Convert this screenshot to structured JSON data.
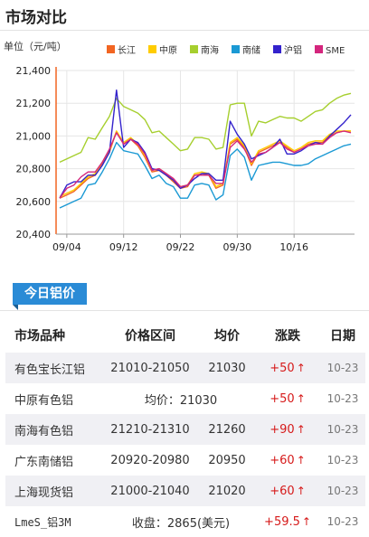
{
  "page": {
    "title": "市场对比"
  },
  "chart_data": {
    "type": "line",
    "ylabel": "单位（元/吨）",
    "ylim": [
      20400,
      21400
    ],
    "yticks": [
      20400,
      20600,
      20800,
      21000,
      21200,
      21400
    ],
    "xticks": [
      "09/04",
      "09/12",
      "09/22",
      "09/30",
      "10/16"
    ],
    "xtick_positions": [
      1,
      9,
      17,
      25,
      33
    ],
    "x_count": 42,
    "grid": true,
    "legend_position": "top-right",
    "series": [
      {
        "name": "长江",
        "color": "#f26522",
        "values": [
          20620,
          20640,
          20660,
          20700,
          20740,
          20760,
          20830,
          20900,
          21030,
          20950,
          20980,
          20940,
          20870,
          20780,
          20790,
          20760,
          20720,
          20680,
          20690,
          20760,
          20770,
          20760,
          20680,
          20700,
          20950,
          20980,
          20930,
          20820,
          20900,
          20920,
          20940,
          20960,
          20930,
          20900,
          20920,
          20950,
          20960,
          20960,
          21000,
          21020,
          21030,
          21030
        ]
      },
      {
        "name": "中原",
        "color": "#ffcc00",
        "values": [
          20630,
          20650,
          20670,
          20710,
          20750,
          20770,
          20840,
          20910,
          21030,
          20960,
          20990,
          20950,
          20880,
          20790,
          20800,
          20770,
          20730,
          20690,
          20700,
          20770,
          20780,
          20770,
          20690,
          20710,
          20960,
          20990,
          20940,
          20830,
          20910,
          20930,
          20950,
          20970,
          20940,
          20910,
          20930,
          20960,
          20970,
          20970,
          21010,
          21030,
          21030,
          21030
        ]
      },
      {
        "name": "南海",
        "color": "#a6cf2e",
        "values": [
          20840,
          20860,
          20880,
          20900,
          20990,
          20980,
          21050,
          21120,
          21230,
          21180,
          21160,
          21140,
          21100,
          21020,
          21030,
          20990,
          20950,
          20910,
          20920,
          20990,
          20990,
          20980,
          20920,
          20930,
          21190,
          21200,
          21200,
          21000,
          21090,
          21080,
          21100,
          21120,
          21110,
          21110,
          21090,
          21120,
          21150,
          21160,
          21200,
          21230,
          21250,
          21260
        ]
      },
      {
        "name": "南储",
        "color": "#1a99d4",
        "values": [
          20560,
          20580,
          20600,
          20620,
          20700,
          20710,
          20780,
          20860,
          20960,
          20910,
          20900,
          20890,
          20820,
          20740,
          20760,
          20710,
          20690,
          20620,
          20620,
          20700,
          20710,
          20700,
          20610,
          20640,
          20880,
          20920,
          20870,
          20730,
          20820,
          20830,
          20840,
          20840,
          20830,
          20820,
          20820,
          20830,
          20860,
          20880,
          20900,
          20920,
          20940,
          20950
        ]
      },
      {
        "name": "沪铝",
        "color": "#3322cc",
        "values": [
          20620,
          20700,
          20720,
          20720,
          20760,
          20760,
          20820,
          20900,
          21280,
          20930,
          20980,
          20960,
          20900,
          20800,
          20790,
          20760,
          20730,
          20680,
          20700,
          20740,
          20770,
          20770,
          20730,
          20730,
          21090,
          21010,
          20950,
          20860,
          20880,
          20900,
          20930,
          20980,
          20890,
          20890,
          20910,
          20940,
          20960,
          20950,
          21000,
          21040,
          21080,
          21130
        ]
      },
      {
        "name": "SME",
        "color": "#d4267d",
        "values": [
          20620,
          20680,
          20700,
          20750,
          20780,
          20780,
          20840,
          20920,
          21020,
          20950,
          20980,
          20950,
          20890,
          20790,
          20800,
          20770,
          20740,
          20690,
          20700,
          20760,
          20760,
          20760,
          20710,
          20710,
          20930,
          20970,
          20920,
          20840,
          20890,
          20900,
          20930,
          20960,
          20920,
          20900,
          20920,
          20940,
          20950,
          20950,
          20990,
          21020,
          21030,
          21020
        ]
      }
    ]
  },
  "price_section": {
    "tab_label": "今日铝价"
  },
  "table": {
    "headers": [
      "市场品种",
      "价格区间",
      "均价",
      "涨跌",
      "日期"
    ],
    "rows": [
      {
        "name": "有色宝长江铝",
        "range": "21010-21050",
        "avg": "21030",
        "change": "+50",
        "date": "10-23"
      },
      {
        "name": "中原有色铝",
        "span": "均价：21030",
        "change": "+50",
        "date": "10-23"
      },
      {
        "name": "南海有色铝",
        "range": "21210-21310",
        "avg": "21260",
        "change": "+90",
        "date": "10-23"
      },
      {
        "name": "广东南储铝",
        "range": "20920-20980",
        "avg": "20950",
        "change": "+60",
        "date": "10-23"
      },
      {
        "name": "上海现货铝",
        "range": "21000-21040",
        "avg": "21020",
        "change": "+60",
        "date": "10-23"
      },
      {
        "name": "LmeS_铝3M",
        "span": "收盘：2865(美元)",
        "change": "+59.5",
        "date": "10-23"
      }
    ],
    "up_arrow": "↑"
  }
}
